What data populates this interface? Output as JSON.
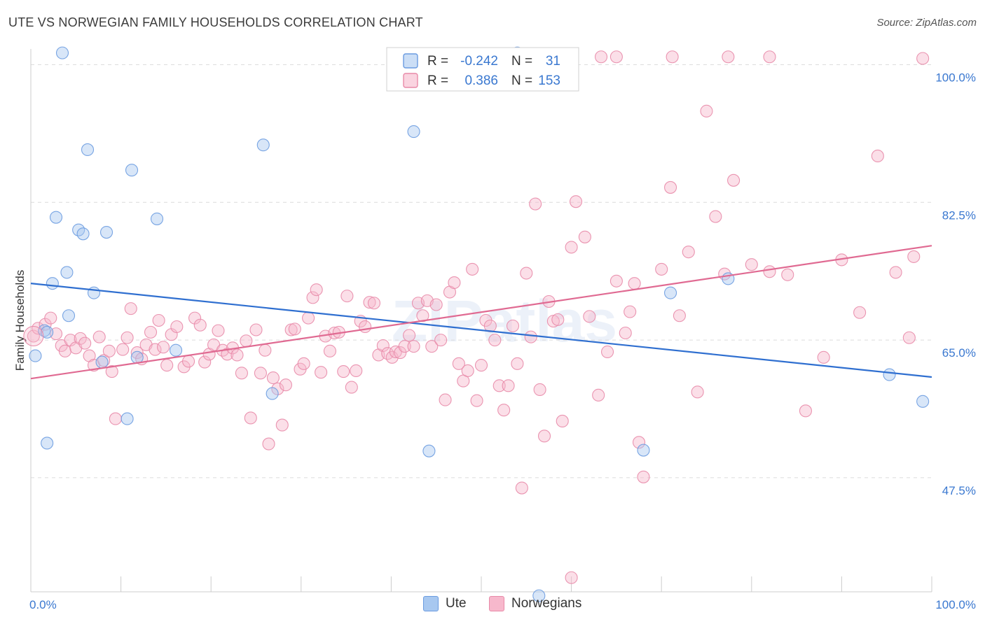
{
  "header": {
    "title": "UTE VS NORWEGIAN FAMILY HOUSEHOLDS CORRELATION CHART",
    "source": "Source: ZipAtlas.com"
  },
  "colors": {
    "ute_fill": "#a8c8f0",
    "ute_stroke": "#6a9be0",
    "ute_line": "#2f6fd0",
    "nor_fill": "#f7b8cc",
    "nor_stroke": "#e88aa8",
    "nor_line": "#e06a92",
    "value_text": "#3a78d0",
    "grid": "#dcdcdc"
  },
  "legend_box": {
    "rows": [
      {
        "r_label": "R =",
        "r_value": "-0.242",
        "n_label": "N =",
        "n_value": "31"
      },
      {
        "r_label": "R =",
        "r_value": "0.386",
        "n_label": "N =",
        "n_value": "153"
      }
    ]
  },
  "legend_bottom": {
    "items": [
      {
        "label": "Ute"
      },
      {
        "label": "Norwegians"
      }
    ]
  },
  "watermark": "ZIPatlas",
  "chart_data": {
    "type": "scatter",
    "title": "UTE VS NORWEGIAN FAMILY HOUSEHOLDS CORRELATION CHART",
    "xlabel": "",
    "ylabel": "Family Households",
    "xlim": [
      0,
      100
    ],
    "ylim": [
      33,
      102
    ],
    "x_tick_labels": [
      "0.0%",
      "100.0%"
    ],
    "y_ticks": [
      47.5,
      65.0,
      82.5,
      100.0
    ],
    "y_tick_labels": [
      "47.5%",
      "65.0%",
      "82.5%",
      "100.0%"
    ],
    "grid": true,
    "legend_placement": "top-center",
    "series": [
      {
        "name": "Ute",
        "r": -0.242,
        "n": 31,
        "trend": {
          "x": [
            0,
            100
          ],
          "y": [
            72.2,
            60.3
          ]
        },
        "points": [
          [
            3.5,
            101.5
          ],
          [
            0.5,
            63.0
          ],
          [
            1.5,
            66.2
          ],
          [
            6.3,
            89.2
          ],
          [
            11.2,
            86.6
          ],
          [
            2.8,
            80.6
          ],
          [
            5.3,
            79.0
          ],
          [
            5.8,
            78.5
          ],
          [
            8.4,
            78.7
          ],
          [
            14.0,
            80.4
          ],
          [
            4.0,
            73.6
          ],
          [
            2.4,
            72.2
          ],
          [
            7.0,
            71.0
          ],
          [
            4.2,
            68.1
          ],
          [
            1.8,
            66.0
          ],
          [
            7.9,
            62.2
          ],
          [
            11.8,
            62.8
          ],
          [
            16.1,
            63.7
          ],
          [
            10.7,
            55.0
          ],
          [
            1.8,
            51.9
          ],
          [
            25.8,
            89.8
          ],
          [
            26.8,
            58.2
          ],
          [
            42.5,
            91.5
          ],
          [
            44.2,
            50.9
          ],
          [
            54.0,
            101.5
          ],
          [
            68.0,
            51.0
          ],
          [
            71.0,
            71.0
          ],
          [
            77.4,
            72.8
          ],
          [
            95.3,
            60.6
          ],
          [
            99.0,
            57.2
          ],
          [
            56.4,
            32.5
          ]
        ]
      },
      {
        "name": "Norwegians",
        "r": 0.386,
        "n": 153,
        "trend": {
          "x": [
            0,
            100
          ],
          "y": [
            60.1,
            77.0
          ]
        },
        "points": [
          [
            0.3,
            65.5
          ],
          [
            0.8,
            66.5
          ],
          [
            1.6,
            67.0
          ],
          [
            2.2,
            67.8
          ],
          [
            2.8,
            65.8
          ],
          [
            3.4,
            64.3
          ],
          [
            3.8,
            63.6
          ],
          [
            4.4,
            65.0
          ],
          [
            5.0,
            64.0
          ],
          [
            5.5,
            65.2
          ],
          [
            6.0,
            64.6
          ],
          [
            6.5,
            63.0
          ],
          [
            7.0,
            61.8
          ],
          [
            7.6,
            65.4
          ],
          [
            8.1,
            62.4
          ],
          [
            8.7,
            63.6
          ],
          [
            9.0,
            61.0
          ],
          [
            9.4,
            55.0
          ],
          [
            10.2,
            63.8
          ],
          [
            10.7,
            65.3
          ],
          [
            11.1,
            69.0
          ],
          [
            11.8,
            63.4
          ],
          [
            12.3,
            62.6
          ],
          [
            12.8,
            64.4
          ],
          [
            13.3,
            66.0
          ],
          [
            13.8,
            63.8
          ],
          [
            14.2,
            67.5
          ],
          [
            14.7,
            64.1
          ],
          [
            15.1,
            61.8
          ],
          [
            15.6,
            65.7
          ],
          [
            16.2,
            66.7
          ],
          [
            17.0,
            61.6
          ],
          [
            17.5,
            62.3
          ],
          [
            18.2,
            67.8
          ],
          [
            18.8,
            66.9
          ],
          [
            19.3,
            62.2
          ],
          [
            19.8,
            63.2
          ],
          [
            20.3,
            64.4
          ],
          [
            20.8,
            66.2
          ],
          [
            21.3,
            63.7
          ],
          [
            21.8,
            63.2
          ],
          [
            22.4,
            64.0
          ],
          [
            22.9,
            63.1
          ],
          [
            23.4,
            60.8
          ],
          [
            23.9,
            64.9
          ],
          [
            24.4,
            55.1
          ],
          [
            25.0,
            66.3
          ],
          [
            25.5,
            60.8
          ],
          [
            26.0,
            63.7
          ],
          [
            26.4,
            51.8
          ],
          [
            26.9,
            60.2
          ],
          [
            27.4,
            58.8
          ],
          [
            27.9,
            54.2
          ],
          [
            28.3,
            59.3
          ],
          [
            28.9,
            66.3
          ],
          [
            29.3,
            66.4
          ],
          [
            29.9,
            61.3
          ],
          [
            30.3,
            62.0
          ],
          [
            30.8,
            67.8
          ],
          [
            31.3,
            70.4
          ],
          [
            31.7,
            71.4
          ],
          [
            32.2,
            60.9
          ],
          [
            32.7,
            65.5
          ],
          [
            33.2,
            63.6
          ],
          [
            33.7,
            65.9
          ],
          [
            34.2,
            66.0
          ],
          [
            34.7,
            61.0
          ],
          [
            35.1,
            70.6
          ],
          [
            35.6,
            59.0
          ],
          [
            36.1,
            61.1
          ],
          [
            36.6,
            67.4
          ],
          [
            37.1,
            66.7
          ],
          [
            37.6,
            69.8
          ],
          [
            38.1,
            69.7
          ],
          [
            38.6,
            63.1
          ],
          [
            39.1,
            64.3
          ],
          [
            39.6,
            63.3
          ],
          [
            40.1,
            62.8
          ],
          [
            40.5,
            63.5
          ],
          [
            41.0,
            63.4
          ],
          [
            41.5,
            64.2
          ],
          [
            42.0,
            65.6
          ],
          [
            42.5,
            64.2
          ],
          [
            43.0,
            69.7
          ],
          [
            43.5,
            68.1
          ],
          [
            44.0,
            70.0
          ],
          [
            44.5,
            64.2
          ],
          [
            45.0,
            69.5
          ],
          [
            45.5,
            65.0
          ],
          [
            46.0,
            57.4
          ],
          [
            46.5,
            71.1
          ],
          [
            47.0,
            72.3
          ],
          [
            47.5,
            62.0
          ],
          [
            48.0,
            59.8
          ],
          [
            48.5,
            61.1
          ],
          [
            49.0,
            74.0
          ],
          [
            49.5,
            57.3
          ],
          [
            50.0,
            61.8
          ],
          [
            50.5,
            67.5
          ],
          [
            51.0,
            66.8
          ],
          [
            51.5,
            65.0
          ],
          [
            52.0,
            59.2
          ],
          [
            52.5,
            56.1
          ],
          [
            53.0,
            59.2
          ],
          [
            53.5,
            66.8
          ],
          [
            54.0,
            62.0
          ],
          [
            54.5,
            46.2
          ],
          [
            55.0,
            73.5
          ],
          [
            55.5,
            65.4
          ],
          [
            56.0,
            82.3
          ],
          [
            56.5,
            58.7
          ],
          [
            57.0,
            52.8
          ],
          [
            57.5,
            69.9
          ],
          [
            58.0,
            67.4
          ],
          [
            58.5,
            67.6
          ],
          [
            59.0,
            54.7
          ],
          [
            60.0,
            76.8
          ],
          [
            60.5,
            82.6
          ],
          [
            61.5,
            78.1
          ],
          [
            62.0,
            68.0
          ],
          [
            63.0,
            58.0
          ],
          [
            64.0,
            63.5
          ],
          [
            65.0,
            72.5
          ],
          [
            66.0,
            65.9
          ],
          [
            66.5,
            68.6
          ],
          [
            67.0,
            72.2
          ],
          [
            67.5,
            52.0
          ],
          [
            68.0,
            47.6
          ],
          [
            70.0,
            74.0
          ],
          [
            71.0,
            84.4
          ],
          [
            72.0,
            68.1
          ],
          [
            73.0,
            76.2
          ],
          [
            74.0,
            58.4
          ],
          [
            75.0,
            94.1
          ],
          [
            76.0,
            80.7
          ],
          [
            77.0,
            73.4
          ],
          [
            78.0,
            85.3
          ],
          [
            80.0,
            74.6
          ],
          [
            82.0,
            73.7
          ],
          [
            84.0,
            73.3
          ],
          [
            86.0,
            56.0
          ],
          [
            88.0,
            62.8
          ],
          [
            90.0,
            75.2
          ],
          [
            92.0,
            68.5
          ],
          [
            94.0,
            88.4
          ],
          [
            96.0,
            73.6
          ],
          [
            98.0,
            75.6
          ],
          [
            99.0,
            100.8
          ],
          [
            97.5,
            65.3
          ],
          [
            63.3,
            101.0
          ],
          [
            65.0,
            101.0
          ],
          [
            71.2,
            101.0
          ],
          [
            77.4,
            101.0
          ],
          [
            82.0,
            101.0
          ],
          [
            60.0,
            34.8
          ]
        ]
      }
    ]
  }
}
